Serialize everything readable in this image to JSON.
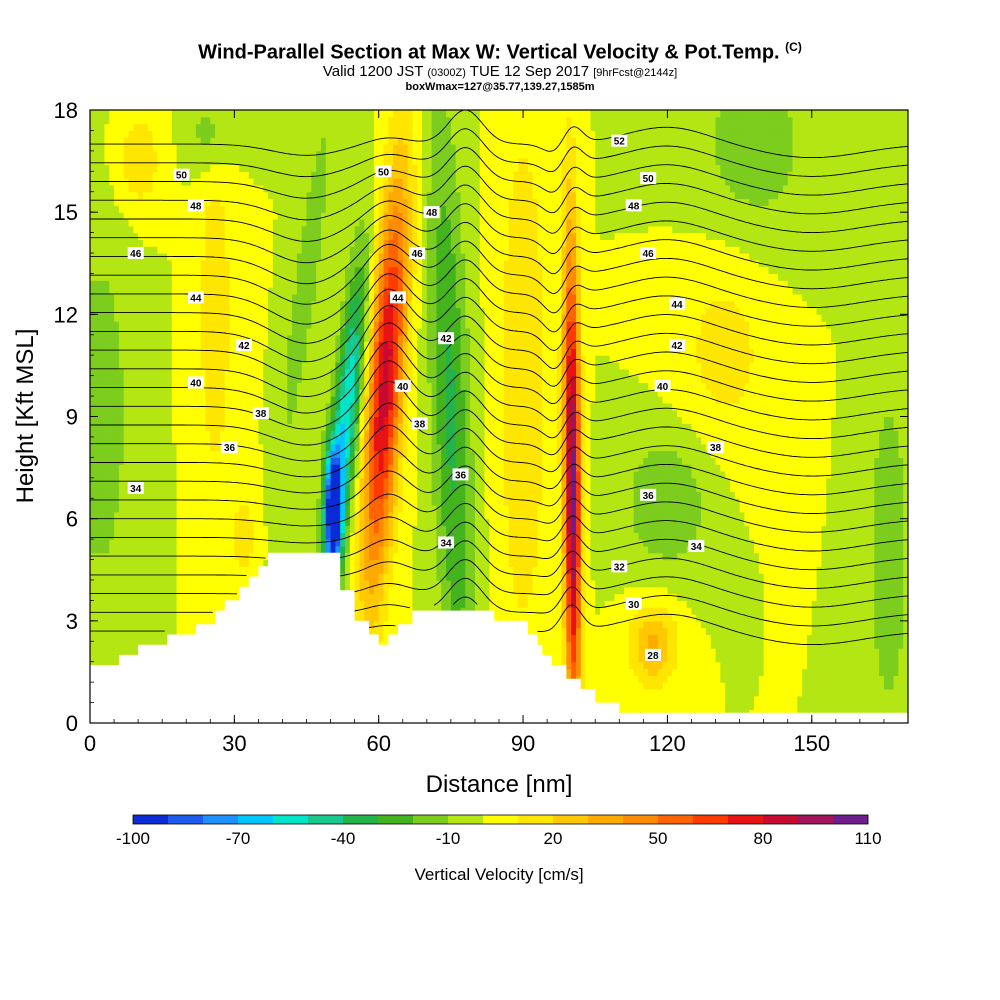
{
  "header": {
    "title": "Wind-Parallel Section at Max W: Vertical Velocity & Pot.Temp.",
    "title_suffix": "(C)",
    "valid_prefix": "Valid 1200 JST",
    "valid_utc": "(0300Z)",
    "valid_date": "TUE 12 Sep 2017",
    "forecast": "[9hrFcst@2144z]",
    "box_info": "boxWmax=127@35.77,139.27,1585m"
  },
  "chart_data": {
    "type": "contour",
    "xlabel": "Distance [nm]",
    "ylabel": "Height [Kft MSL]",
    "xlim": [
      0,
      170
    ],
    "ylim": [
      0,
      18
    ],
    "x_ticks": [
      0,
      30,
      60,
      90,
      120,
      150
    ],
    "y_ticks": [
      0,
      3,
      6,
      9,
      12,
      15,
      18
    ],
    "colorbar": {
      "title": "Vertical Velocity [cm/s]",
      "levels": [
        -100,
        -90,
        -80,
        -70,
        -60,
        -50,
        -40,
        -30,
        -20,
        -10,
        0,
        10,
        20,
        30,
        40,
        50,
        60,
        70,
        80,
        90,
        100,
        110
      ],
      "tick_labels": [
        "-100",
        "-70",
        "-40",
        "-10",
        "20",
        "50",
        "80",
        "110"
      ],
      "colors": [
        "#0a2bd6",
        "#1e5cf0",
        "#1e90ff",
        "#00c8ff",
        "#00e5c8",
        "#19c88c",
        "#22b44a",
        "#44b41e",
        "#7ccd1e",
        "#b4e614",
        "#ffff00",
        "#ffe600",
        "#ffc800",
        "#ffaa00",
        "#ff8c00",
        "#ff6400",
        "#ff3c00",
        "#e61414",
        "#c80a32",
        "#a0145a",
        "#6e1e8c"
      ]
    },
    "theta_labels": [
      {
        "value": "50",
        "x": 19,
        "y": 16.1
      },
      {
        "value": "48",
        "x": 22,
        "y": 15.2
      },
      {
        "value": "46",
        "x": 9.5,
        "y": 13.8
      },
      {
        "value": "44",
        "x": 22,
        "y": 12.5
      },
      {
        "value": "42",
        "x": 32,
        "y": 11.1
      },
      {
        "value": "40",
        "x": 22,
        "y": 10.0
      },
      {
        "value": "38",
        "x": 35.5,
        "y": 9.1
      },
      {
        "value": "36",
        "x": 29,
        "y": 8.1
      },
      {
        "value": "34",
        "x": 9.5,
        "y": 6.9
      },
      {
        "value": "50",
        "x": 61,
        "y": 16.2
      },
      {
        "value": "48",
        "x": 71,
        "y": 15.0
      },
      {
        "value": "46",
        "x": 68,
        "y": 13.8
      },
      {
        "value": "44",
        "x": 64,
        "y": 12.5
      },
      {
        "value": "42",
        "x": 74,
        "y": 11.3
      },
      {
        "value": "40",
        "x": 65,
        "y": 9.9
      },
      {
        "value": "38",
        "x": 68.5,
        "y": 8.8
      },
      {
        "value": "36",
        "x": 77,
        "y": 7.3
      },
      {
        "value": "34",
        "x": 74,
        "y": 5.3
      },
      {
        "value": "52",
        "x": 110,
        "y": 17.1
      },
      {
        "value": "50",
        "x": 116,
        "y": 16.0
      },
      {
        "value": "48",
        "x": 113,
        "y": 15.2
      },
      {
        "value": "46",
        "x": 116,
        "y": 13.8
      },
      {
        "value": "44",
        "x": 122,
        "y": 12.3
      },
      {
        "value": "42",
        "x": 122,
        "y": 11.1
      },
      {
        "value": "40",
        "x": 119,
        "y": 9.9
      },
      {
        "value": "38",
        "x": 130,
        "y": 8.1
      },
      {
        "value": "36",
        "x": 116,
        "y": 6.7
      },
      {
        "value": "34",
        "x": 126,
        "y": 5.2
      },
      {
        "value": "32",
        "x": 110,
        "y": 4.6
      },
      {
        "value": "30",
        "x": 113,
        "y": 3.5
      },
      {
        "value": "28",
        "x": 117,
        "y": 2.0
      }
    ]
  }
}
